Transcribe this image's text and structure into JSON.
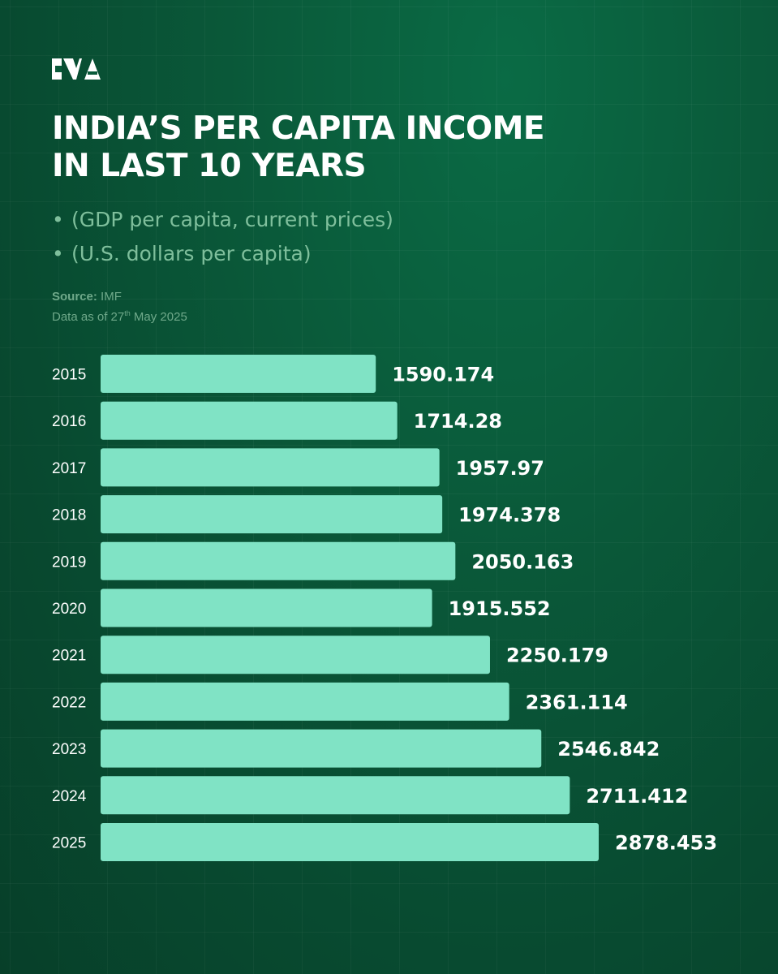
{
  "header": {
    "brand_icon": "brand-logo-icon",
    "title_line1": "INDIA’S PER CAPITA INCOME",
    "title_line2": "IN LAST 10 YEARS",
    "subtitle_1": "(GDP per capita, current prices)",
    "subtitle_2": "(U.S. dollars per capita)",
    "bullet": "•",
    "source_label": "Source:",
    "source_value": " IMF",
    "data_as_of_prefix": "Data as of 27",
    "data_as_of_sup": "th",
    "data_as_of_suffix": " May 2025"
  },
  "colors": {
    "bar": "#80e3c5",
    "value_label": "#ffffff",
    "year_label": "#ffffff"
  },
  "chart_data": {
    "type": "bar",
    "orientation": "horizontal",
    "categories": [
      "2015",
      "2016",
      "2017",
      "2018",
      "2019",
      "2020",
      "2021",
      "2022",
      "2023",
      "2024",
      "2025"
    ],
    "values": [
      1590.174,
      1714.28,
      1957.97,
      1974.378,
      2050.163,
      1915.552,
      2250.179,
      2361.114,
      2546.842,
      2711.412,
      2878.453
    ],
    "value_labels": [
      "1590.174",
      "1714.28",
      "1957.97",
      "1974.378",
      "2050.163",
      "1915.552",
      "2250.179",
      "2361.114",
      "2546.842",
      "2711.412",
      "2878.453"
    ],
    "xlim": [
      0,
      2878.453
    ],
    "xlabel": "",
    "ylabel": "",
    "grid": false,
    "legend": "none"
  }
}
